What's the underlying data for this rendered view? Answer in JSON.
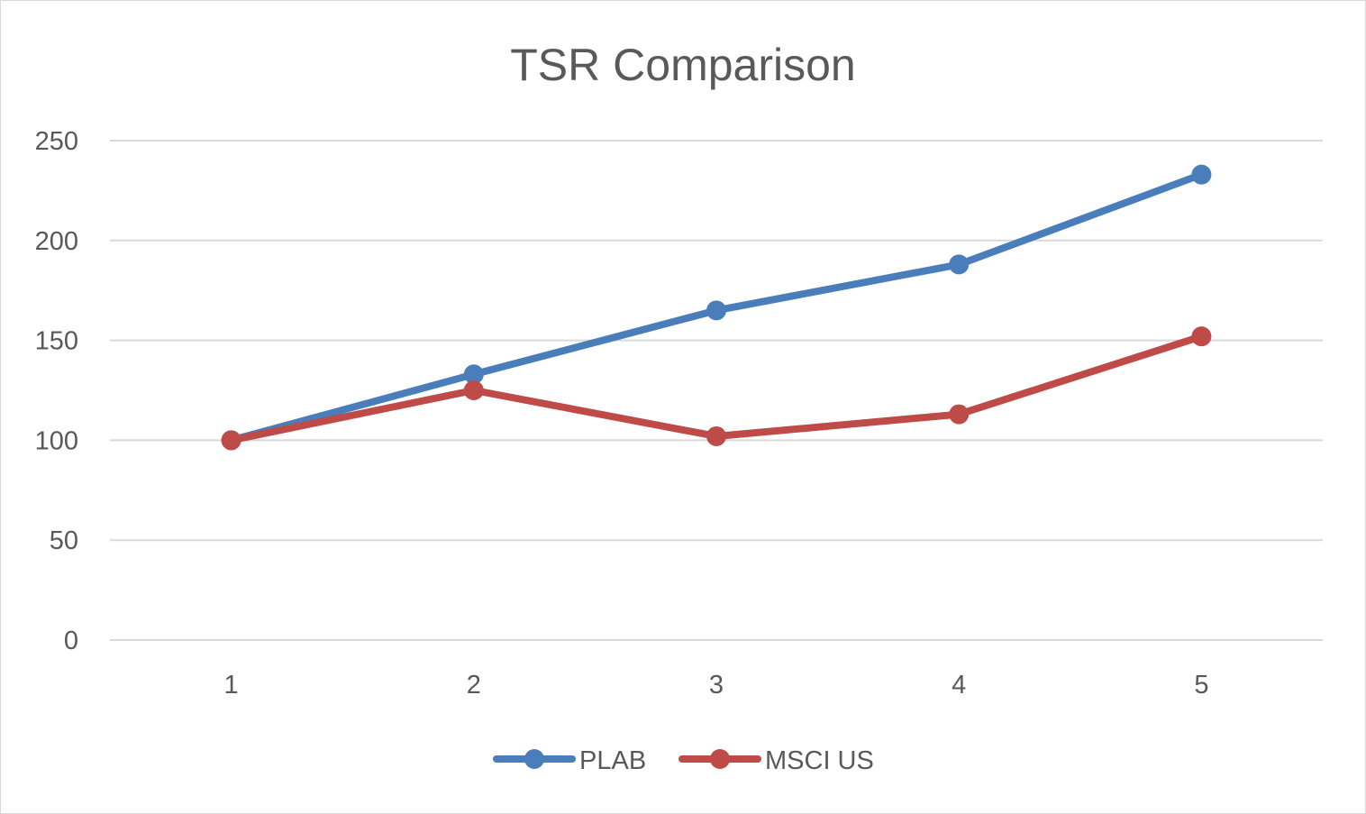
{
  "chart_data": {
    "type": "line",
    "title": "TSR Comparison",
    "xlabel": "",
    "ylabel": "",
    "categories": [
      "1",
      "2",
      "3",
      "4",
      "5"
    ],
    "ylim": [
      0,
      250
    ],
    "yticks": [
      "0",
      "50",
      "100",
      "150",
      "200",
      "250"
    ],
    "grid": true,
    "legend_position": "bottom",
    "series": [
      {
        "name": "PLAB",
        "color": "#4a7ebb",
        "values": [
          100,
          133,
          165,
          188,
          233
        ]
      },
      {
        "name": "MSCI US",
        "color": "#be4b48",
        "values": [
          100,
          125,
          102,
          113,
          152
        ]
      }
    ]
  }
}
